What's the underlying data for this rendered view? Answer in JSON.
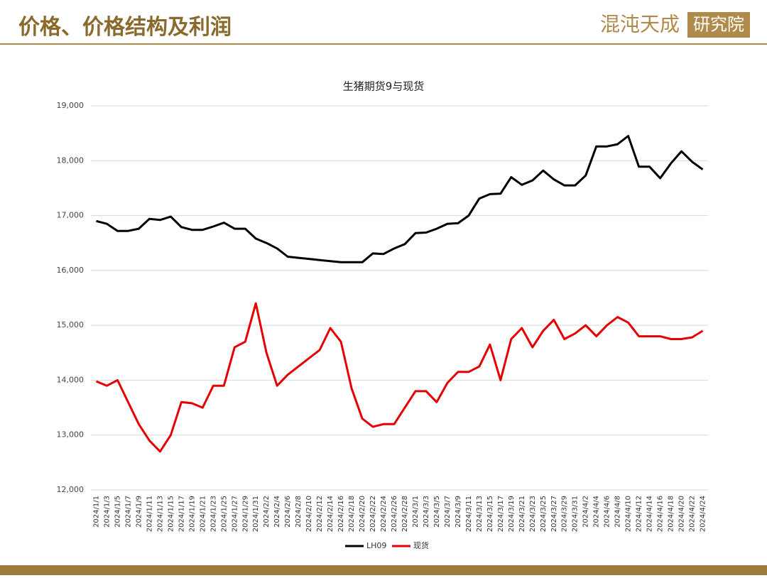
{
  "header": {
    "title": "价格、价格结构及利润",
    "logo_left": "混沌天成",
    "logo_right": "研究院"
  },
  "chart_data": {
    "type": "line",
    "title": "生猪期货9与现货",
    "categories": [
      "2024/1/1",
      "2024/1/3",
      "2024/1/5",
      "2024/1/7",
      "2024/1/9",
      "2024/1/11",
      "2024/1/13",
      "2024/1/15",
      "2024/1/17",
      "2024/1/19",
      "2024/1/21",
      "2024/1/23",
      "2024/1/25",
      "2024/1/27",
      "2024/1/29",
      "2024/1/31",
      "2024/2/2",
      "2024/2/4",
      "2024/2/6",
      "2024/2/8",
      "2024/2/10",
      "2024/2/12",
      "2024/2/14",
      "2024/2/16",
      "2024/2/18",
      "2024/2/20",
      "2024/2/22",
      "2024/2/24",
      "2024/2/26",
      "2024/2/28",
      "2024/3/1",
      "2024/3/3",
      "2024/3/5",
      "2024/3/7",
      "2024/3/9",
      "2024/3/11",
      "2024/3/13",
      "2024/3/15",
      "2024/3/17",
      "2024/3/19",
      "2024/3/21",
      "2024/3/23",
      "2024/3/25",
      "2024/3/27",
      "2024/3/29",
      "2024/3/31",
      "2024/4/2",
      "2024/4/4",
      "2024/4/6",
      "2024/4/8",
      "2024/4/10",
      "2024/4/12",
      "2024/4/14",
      "2024/4/16",
      "2024/4/18",
      "2024/4/20",
      "2024/4/22",
      "2024/4/24"
    ],
    "series": [
      {
        "name": "LH09",
        "color": "#000000",
        "values": [
          16900,
          16850,
          16720,
          16720,
          16760,
          16940,
          16920,
          16980,
          16790,
          16740,
          16740,
          16800,
          16870,
          16760,
          16760,
          16580,
          16500,
          16400,
          16250,
          16230,
          16210,
          16190,
          16170,
          16150,
          16150,
          16150,
          16310,
          16300,
          16400,
          16480,
          16680,
          16690,
          16760,
          16850,
          16860,
          17000,
          17310,
          17390,
          17400,
          17700,
          17560,
          17640,
          17820,
          17660,
          17550,
          17550,
          17730,
          18260,
          18260,
          18300,
          18450,
          17890,
          17890,
          17680,
          17950,
          18170,
          17980,
          17840
        ]
      },
      {
        "name": "现货",
        "color": "#e60000",
        "values": [
          13980,
          13900,
          14000,
          13600,
          13200,
          12900,
          12700,
          13000,
          13600,
          13580,
          13500,
          13900,
          13900,
          14600,
          14700,
          15400,
          14500,
          13900,
          14100,
          14250,
          14400,
          14550,
          14950,
          14700,
          13850,
          13300,
          13150,
          13200,
          13200,
          13500,
          13800,
          13800,
          13600,
          13950,
          14150,
          14150,
          14250,
          14650,
          14000,
          14750,
          14950,
          14600,
          14900,
          15100,
          14750,
          14850,
          15000,
          14800,
          15000,
          15150,
          15050,
          14800,
          14800,
          14800,
          14750,
          14750,
          14780,
          14900
        ]
      }
    ],
    "ylim": [
      12000,
      19000
    ],
    "yticks": [
      {
        "value": 12000,
        "label": "12,000"
      },
      {
        "value": 13000,
        "label": "13,000"
      },
      {
        "value": 14000,
        "label": "14,000"
      },
      {
        "value": 15000,
        "label": "15,000"
      },
      {
        "value": 16000,
        "label": "16,000"
      },
      {
        "value": 17000,
        "label": "17,000"
      },
      {
        "value": 18000,
        "label": "18,000"
      },
      {
        "value": 19000,
        "label": "19,000"
      }
    ],
    "grid": true,
    "legend": "bottom"
  }
}
